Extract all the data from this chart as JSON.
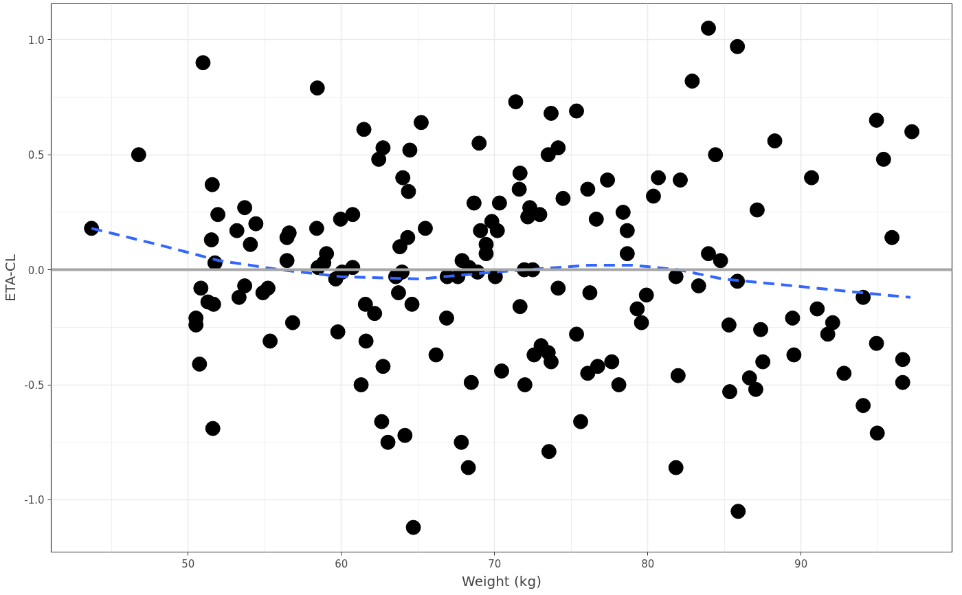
{
  "chart_data": {
    "type": "scatter",
    "xlabel": "Weight (kg)",
    "ylabel": "ETA-CL",
    "xlim": [
      41.06,
      99.86
    ],
    "ylim": [
      -1.227,
      1.156
    ],
    "xticks": [
      50,
      60,
      70,
      80,
      90
    ],
    "yticks": [
      {
        "value": -1.0,
        "label": "-1.0"
      },
      {
        "value": -0.5,
        "label": "-0.5"
      },
      {
        "value": 0,
        "label": "0.0"
      },
      {
        "value": 0.5,
        "label": "0.5"
      },
      {
        "value": 1.0,
        "label": "1.0"
      }
    ],
    "grid": true,
    "ref_lines": [
      {
        "axis": "y",
        "value": 0,
        "color": "#a6a6a6"
      }
    ],
    "series": [
      {
        "color": "#000000",
        "marker": "circle",
        "x": [
          43.69,
          46.77,
          50.97,
          51.57,
          51.94,
          51.52,
          51.75,
          50.83,
          50.51,
          50.51,
          51.29,
          51.66,
          50.74,
          51.61,
          53.18,
          53.69,
          54.42,
          54.06,
          53.32,
          53.69,
          54.88,
          55.21,
          55.35,
          56.45,
          56.59,
          56.45,
          56.82,
          58.43,
          58.39,
          58.48,
          58.85,
          59.03,
          59.63,
          59.95,
          60.05,
          60.74,
          60.74,
          59.77,
          61.47,
          62.72,
          62.44,
          61.57,
          61.61,
          62.17,
          61.29,
          62.72,
          62.63,
          63.04,
          64.01,
          64.47,
          64.38,
          65.21,
          65.48,
          63.82,
          64.33,
          63.96,
          63.55,
          63.73,
          64.61,
          64.15,
          64.7,
          66.18,
          66.87,
          66.91,
          67.6,
          67.88,
          68.34,
          67.83,
          68.29,
          68.48,
          68.66,
          68.99,
          68.89,
          69.08,
          69.45,
          69.45,
          69.82,
          70.18,
          70.05,
          70.32,
          70.46,
          71.38,
          71.66,
          71.61,
          71.94,
          71.66,
          71.98,
          72.3,
          72.17,
          72.49,
          72.95,
          72.58,
          73.04,
          73.5,
          73.69,
          73.5,
          73.69,
          74.15,
          74.47,
          74.15,
          73.55,
          75.35,
          75.35,
          75.62,
          76.08,
          76.22,
          76.64,
          76.08,
          76.73,
          77.37,
          77.65,
          78.11,
          78.39,
          78.66,
          78.66,
          79.31,
          79.91,
          79.59,
          80.37,
          80.69,
          81.84,
          81.98,
          81.84,
          82.12,
          82.9,
          83.32,
          83.96,
          83.96,
          84.42,
          84.75,
          85.85,
          85.85,
          85.3,
          85.35,
          85.9,
          87.14,
          87.37,
          87.51,
          86.64,
          87.05,
          88.29,
          89.45,
          89.54,
          90.69,
          91.06,
          91.75,
          92.07,
          92.81,
          94.06,
          94.06,
          94.93,
          95.39,
          94.93,
          94.98,
          95.94,
          97.24,
          96.64,
          96.64
        ],
        "values": [
          0.18,
          0.5,
          0.9,
          0.37,
          0.24,
          0.13,
          0.03,
          -0.08,
          -0.21,
          -0.24,
          -0.14,
          -0.15,
          -0.41,
          -0.69,
          0.17,
          0.27,
          0.2,
          0.11,
          -0.12,
          -0.07,
          -0.1,
          -0.08,
          -0.31,
          0.14,
          0.16,
          0.04,
          -0.23,
          0.79,
          0.18,
          0.01,
          0.03,
          0.07,
          -0.04,
          0.22,
          -0.01,
          0.24,
          0.01,
          -0.27,
          0.61,
          0.53,
          0.48,
          -0.15,
          -0.31,
          -0.19,
          -0.5,
          -0.42,
          -0.66,
          -0.75,
          0.4,
          0.52,
          0.34,
          0.64,
          0.18,
          0.1,
          0.14,
          -0.01,
          -0.03,
          -0.1,
          -0.15,
          -0.72,
          -1.12,
          -0.37,
          -0.21,
          -0.03,
          -0.03,
          0.04,
          0.01,
          -0.75,
          -0.86,
          -0.49,
          0.29,
          0.55,
          -0.01,
          0.17,
          0.11,
          0.07,
          0.21,
          0.17,
          -0.03,
          0.29,
          -0.44,
          0.73,
          0.42,
          0.35,
          0.0,
          -0.16,
          -0.5,
          0.27,
          0.23,
          0.0,
          0.24,
          -0.37,
          -0.33,
          -0.36,
          -0.4,
          0.5,
          0.68,
          0.53,
          0.31,
          -0.08,
          -0.79,
          0.69,
          -0.28,
          -0.66,
          0.35,
          -0.1,
          0.22,
          -0.45,
          -0.42,
          0.39,
          -0.4,
          -0.5,
          0.25,
          0.17,
          0.07,
          -0.17,
          -0.11,
          -0.23,
          0.32,
          0.4,
          -0.03,
          -0.46,
          -0.86,
          0.39,
          0.82,
          -0.07,
          1.05,
          0.07,
          0.5,
          0.04,
          0.97,
          -0.05,
          -0.24,
          -0.53,
          -1.05,
          0.26,
          -0.26,
          -0.4,
          -0.47,
          -0.52,
          0.56,
          -0.21,
          -0.37,
          0.4,
          -0.17,
          -0.28,
          -0.23,
          -0.45,
          -0.12,
          -0.59,
          0.65,
          0.48,
          -0.32,
          -0.71,
          0.14,
          0.6,
          -0.39,
          -0.49
        ]
      },
      {
        "type": "line",
        "color": "#3366ff",
        "line_style": "dashed",
        "x": [
          43.69,
          48,
          52,
          56,
          60,
          65.1,
          70,
          76.2,
          79,
          82,
          84.9,
          88,
          91,
          94,
          97.14
        ],
        "values": [
          0.18,
          0.11,
          0.04,
          0.0,
          -0.03,
          -0.04,
          -0.01,
          0.02,
          0.02,
          0.0,
          -0.04,
          -0.06,
          -0.08,
          -0.1,
          -0.12
        ]
      }
    ]
  }
}
